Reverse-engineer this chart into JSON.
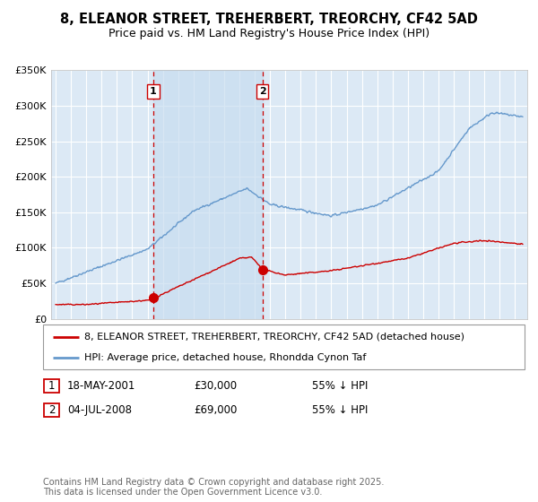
{
  "title": "8, ELEANOR STREET, TREHERBERT, TREORCHY, CF42 5AD",
  "subtitle": "Price paid vs. HM Land Registry's House Price Index (HPI)",
  "ylim": [
    0,
    350000
  ],
  "yticks": [
    0,
    50000,
    100000,
    150000,
    200000,
    250000,
    300000,
    350000
  ],
  "ytick_labels": [
    "£0",
    "£50K",
    "£100K",
    "£150K",
    "£200K",
    "£250K",
    "£300K",
    "£350K"
  ],
  "xlim_start": 1994.7,
  "xlim_end": 2025.8,
  "background_color": "#ffffff",
  "plot_bg_color": "#dce9f5",
  "grid_color": "#ffffff",
  "line1_color": "#cc0000",
  "line2_color": "#6699cc",
  "vline_color": "#cc0000",
  "shade_color": "#c8ddf0",
  "vline1_x": 2001.38,
  "vline2_x": 2008.5,
  "marker1_x": 2001.38,
  "marker1_y": 30000,
  "marker2_x": 2008.5,
  "marker2_y": 69000,
  "purchase1_date": "18-MAY-2001",
  "purchase1_price": "£30,000",
  "purchase1_hpi": "55% ↓ HPI",
  "purchase2_date": "04-JUL-2008",
  "purchase2_price": "£69,000",
  "purchase2_hpi": "55% ↓ HPI",
  "legend_line1": "8, ELEANOR STREET, TREHERBERT, TREORCHY, CF42 5AD (detached house)",
  "legend_line2": "HPI: Average price, detached house, Rhondda Cynon Taf",
  "footer": "Contains HM Land Registry data © Crown copyright and database right 2025.\nThis data is licensed under the Open Government Licence v3.0.",
  "title_fontsize": 10.5,
  "subtitle_fontsize": 9,
  "axis_fontsize": 8,
  "footer_fontsize": 7
}
